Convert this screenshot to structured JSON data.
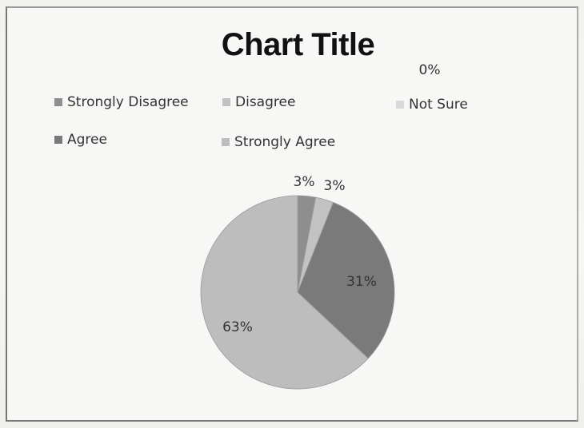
{
  "chart_data": {
    "type": "pie",
    "title": "Chart Title",
    "categories": [
      "Strongly Disagree",
      "Disagree",
      "Not Sure",
      "Agree",
      "Strongly Agree"
    ],
    "values": [
      3,
      3,
      0,
      31,
      63
    ],
    "data_labels": [
      "3%",
      "3%",
      "0%",
      "31%",
      "63%"
    ],
    "colors": [
      "#8e8e8e",
      "#c2c2c2",
      "#d9d9d9",
      "#7a7a7a",
      "#bdbdbd"
    ],
    "legend_position": "top"
  }
}
